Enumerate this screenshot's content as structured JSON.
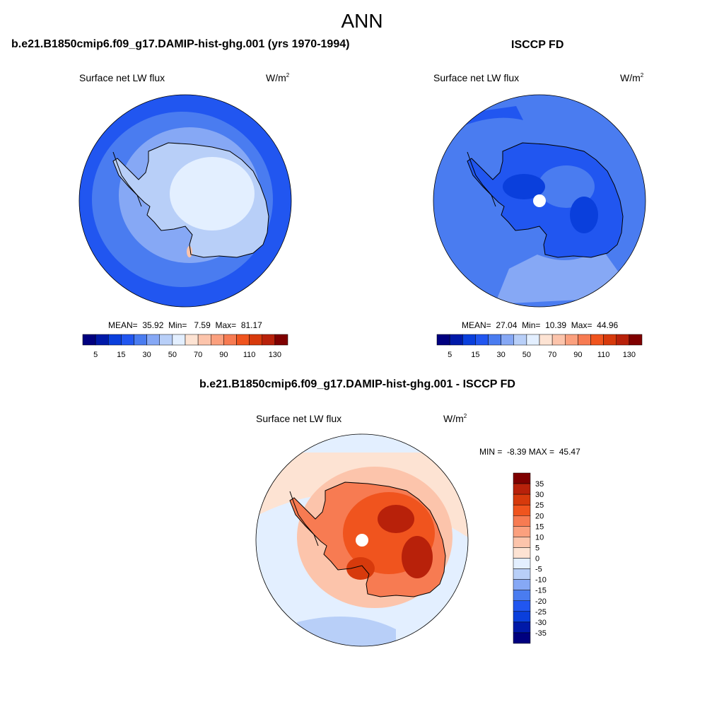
{
  "season": "ANN",
  "panels": [
    {
      "title": "b.e21.B1850cmip6.f09_g17.DAMIP-hist-ghg.001 (yrs 1970-1994)",
      "variable": "Surface net LW flux",
      "units_base": "W/m",
      "units_exp": "2",
      "mean": "35.92",
      "min": "7.59",
      "max": "81.17"
    },
    {
      "title": "ISCCP FD",
      "variable": "Surface net LW flux",
      "units_base": "W/m",
      "units_exp": "2",
      "mean": "27.04",
      "min": "10.39",
      "max": "44.96"
    },
    {
      "title": "b.e21.B1850cmip6.f09_g17.DAMIP-hist-ghg.001 - ISCCP FD",
      "variable": "Surface net LW flux",
      "units_base": "W/m",
      "units_exp": "2",
      "min": "-8.39",
      "max": "45.47"
    }
  ],
  "stat_labels": {
    "mean": "MEAN=",
    "min": "Min=",
    "max": "Max=",
    "diff_min": "MIN =",
    "diff_max": "MAX ="
  },
  "colorbar_main": {
    "ticks": [
      "5",
      "15",
      "30",
      "50",
      "70",
      "90",
      "110",
      "130"
    ],
    "colors": [
      "#00007f",
      "#0019a8",
      "#0a3fdc",
      "#2156f0",
      "#4a7cf0",
      "#86a8f5",
      "#b8cff8",
      "#e3efff",
      "#fde3d3",
      "#fcc4ab",
      "#fba07e",
      "#f77b52",
      "#f0541e",
      "#d73a0c",
      "#b8210a",
      "#7f0000"
    ]
  },
  "colorbar_diff": {
    "ticks": [
      "35",
      "30",
      "25",
      "20",
      "15",
      "10",
      "5",
      "0",
      "-5",
      "-10",
      "-15",
      "-20",
      "-25",
      "-30",
      "-35"
    ],
    "colors": [
      "#7f0000",
      "#b8210a",
      "#d73a0c",
      "#f0541e",
      "#f77b52",
      "#fba07e",
      "#fcc4ab",
      "#fde3d3",
      "#e3efff",
      "#b8cff8",
      "#86a8f5",
      "#4a7cf0",
      "#2156f0",
      "#0a3fdc",
      "#0019a8",
      "#00007f"
    ]
  }
}
